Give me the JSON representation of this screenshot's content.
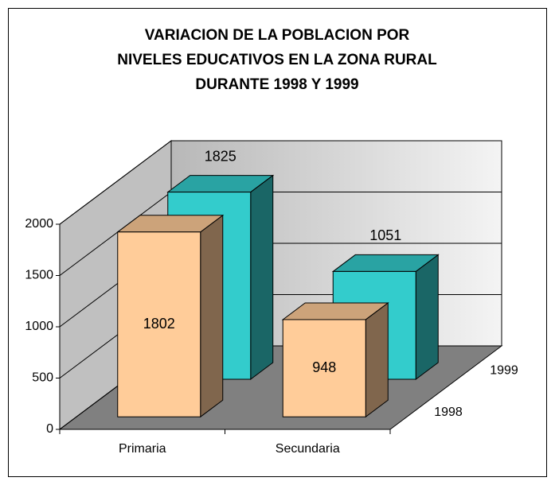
{
  "chart_data": {
    "type": "bar3d",
    "title": [
      "VARIACION DE LA POBLACION POR",
      "NIVELES  EDUCATIVOS EN LA ZONA RURAL",
      "DURANTE 1998 Y 1999"
    ],
    "categories": [
      "Primaria",
      "Secundaria"
    ],
    "series": [
      {
        "name": "1998",
        "color": "#ffcc99",
        "values": [
          1802,
          948
        ]
      },
      {
        "name": "1999",
        "color": "#33cccc",
        "values": [
          1825,
          1051
        ]
      }
    ],
    "ylim": [
      0,
      2000
    ],
    "yticks": [
      0,
      500,
      1000,
      1500,
      2000
    ],
    "grid": true
  }
}
